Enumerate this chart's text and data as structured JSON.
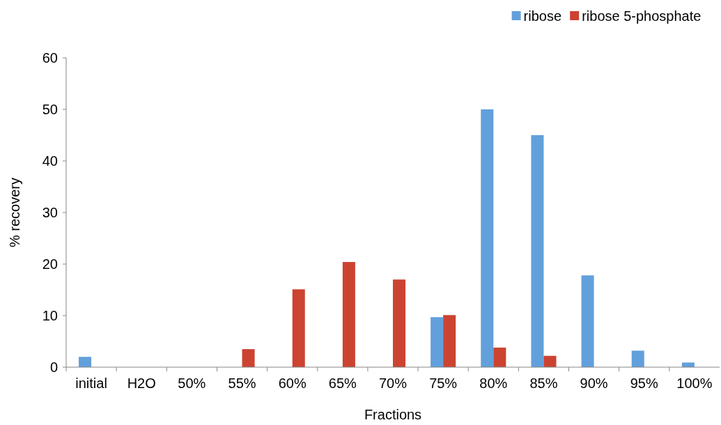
{
  "chart_data": {
    "type": "bar",
    "xlabel": "Fractions",
    "ylabel": "% recovery",
    "categories": [
      "initial",
      "H2O",
      "50%",
      "55%",
      "60%",
      "65%",
      "70%",
      "75%",
      "80%",
      "85%",
      "90%",
      "95%",
      "100%"
    ],
    "series": [
      {
        "name": "ribose",
        "color": "#62a0dc",
        "values": [
          2.0,
          null,
          null,
          null,
          null,
          null,
          null,
          9.7,
          50,
          45,
          17.8,
          3.2,
          0.9
        ]
      },
      {
        "name": "ribose 5-phosphate",
        "color": "#cc4331",
        "values": [
          null,
          null,
          null,
          3.5,
          15.1,
          20.4,
          17.0,
          10.1,
          3.8,
          2.2,
          null,
          null,
          null
        ]
      }
    ],
    "ylim": [
      0,
      60
    ],
    "yticks": [
      0,
      10,
      20,
      30,
      40,
      50,
      60
    ],
    "grid": false,
    "legend": "top right"
  }
}
